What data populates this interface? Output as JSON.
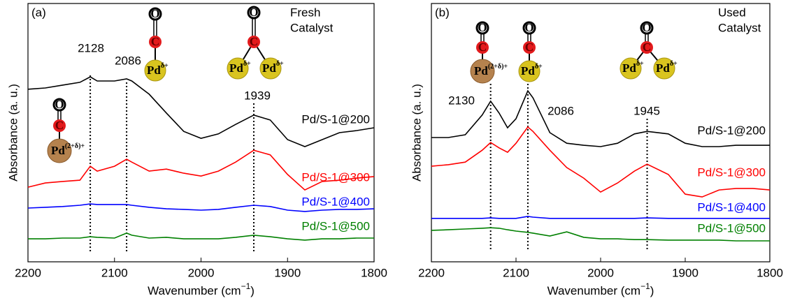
{
  "chart_data": [
    {
      "type": "line",
      "panel": "(a)",
      "note": [
        "Fresh",
        "Catalyst"
      ],
      "xlabel": "Wavenumber (cm",
      "xlabel_sup": "−1",
      "xlabel_end": ")",
      "ylabel": "Absorbance (a. u.)",
      "xlim": [
        2200,
        1800
      ],
      "xticks": [
        2200,
        2100,
        2000,
        1900,
        1800
      ],
      "ylim": [
        0,
        100
      ],
      "peaks": [
        2128,
        2086,
        1939
      ],
      "x": [
        2200,
        2180,
        2160,
        2140,
        2128,
        2120,
        2100,
        2086,
        2080,
        2060,
        2040,
        2020,
        2000,
        1980,
        1960,
        1939,
        1920,
        1900,
        1880,
        1860,
        1840,
        1820,
        1800
      ],
      "series": [
        {
          "name": "Pd/S-1@200",
          "color": "#000000",
          "values": [
            66.8,
            67.3,
            68.4,
            69.5,
            71.6,
            70.0,
            70.0,
            70.8,
            70.0,
            64.9,
            57.6,
            50.5,
            47.8,
            49.5,
            53.2,
            56.8,
            54.9,
            47.3,
            44.6,
            47.3,
            50.0,
            50.8,
            51.9
          ]
        },
        {
          "name": "Pd/S-1@300",
          "color": "#ff0000",
          "values": [
            28.9,
            30.5,
            31.1,
            31.6,
            37.0,
            35.1,
            37.0,
            39.7,
            38.6,
            35.1,
            35.9,
            34.3,
            33.2,
            35.1,
            38.6,
            43.2,
            41.4,
            33.8,
            27.8,
            31.1,
            31.6,
            32.4,
            33.0
          ]
        },
        {
          "name": "Pd/S-1@400",
          "color": "#0000ff",
          "values": [
            20.8,
            21.1,
            21.4,
            21.9,
            22.4,
            22.2,
            22.2,
            22.2,
            21.9,
            21.1,
            20.5,
            20.3,
            20.0,
            20.3,
            21.1,
            21.9,
            21.4,
            20.0,
            19.5,
            20.0,
            20.3,
            20.3,
            20.5
          ]
        },
        {
          "name": "Pd/S-1@500",
          "color": "#008000",
          "values": [
            8.9,
            8.9,
            9.2,
            9.2,
            9.7,
            9.5,
            9.2,
            11.1,
            10.3,
            9.2,
            9.5,
            8.9,
            8.9,
            8.9,
            9.5,
            10.3,
            9.7,
            8.9,
            8.4,
            8.9,
            8.9,
            9.2,
            9.2
          ]
        }
      ],
      "icons": [
        {
          "oxygen": "O",
          "carbon": "C",
          "metals": [
            {
              "symbol": "Pd",
              "charge": "(2+δ)+"
            }
          ]
        },
        {
          "oxygen": "O",
          "carbon": "C",
          "metals": [
            {
              "symbol": "Pd",
              "charge": "δ+"
            }
          ]
        },
        {
          "oxygen": "O",
          "carbon": "C",
          "metals": [
            {
              "symbol": "Pd",
              "charge": "δ+"
            },
            {
              "symbol": "Pd",
              "charge": "δ+"
            }
          ]
        }
      ]
    },
    {
      "type": "line",
      "panel": "(b)",
      "note": [
        "Used",
        "Catalyst"
      ],
      "xlabel": "Wavenumber (cm",
      "xlabel_sup": "−1",
      "xlabel_end": ")",
      "ylabel": "Absorbance (a. u.)",
      "xlim": [
        2200,
        1800
      ],
      "xticks": [
        2200,
        2100,
        2000,
        1900,
        1800
      ],
      "ylim": [
        0,
        100
      ],
      "peaks": [
        2130,
        2086,
        1945
      ],
      "x": [
        2200,
        2180,
        2160,
        2140,
        2130,
        2120,
        2110,
        2100,
        2086,
        2080,
        2060,
        2040,
        2020,
        2000,
        1980,
        1960,
        1945,
        1920,
        1900,
        1880,
        1860,
        1840,
        1820,
        1800
      ],
      "series": [
        {
          "name": "Pd/S-1@200",
          "color": "#000000",
          "values": [
            48.1,
            48.1,
            49.2,
            56.8,
            62.2,
            57.6,
            51.9,
            55.4,
            66.2,
            63.5,
            50.0,
            45.9,
            45.1,
            44.6,
            45.9,
            49.5,
            50.5,
            49.5,
            45.9,
            44.6,
            44.6,
            45.1,
            45.1,
            45.1
          ]
        },
        {
          "name": "Pd/S-1@300",
          "color": "#ff0000",
          "values": [
            37.0,
            37.6,
            38.6,
            43.2,
            46.2,
            44.1,
            42.4,
            45.9,
            52.2,
            50.5,
            43.2,
            36.5,
            32.4,
            27.0,
            30.5,
            35.1,
            37.8,
            33.8,
            26.2,
            25.1,
            27.8,
            28.4,
            28.4,
            27.8
          ]
        },
        {
          "name": "Pd/S-1@400",
          "color": "#0000ff",
          "values": [
            16.8,
            16.8,
            16.8,
            16.8,
            17.0,
            16.8,
            16.8,
            16.8,
            17.6,
            17.3,
            16.8,
            16.8,
            16.8,
            16.8,
            16.8,
            16.8,
            17.0,
            16.8,
            16.8,
            16.8,
            16.8,
            16.8,
            16.8,
            16.8
          ]
        },
        {
          "name": "Pd/S-1@500",
          "color": "#008000",
          "values": [
            12.2,
            12.4,
            12.7,
            13.0,
            13.2,
            13.0,
            12.4,
            11.9,
            11.4,
            11.1,
            10.0,
            11.6,
            9.5,
            8.9,
            8.9,
            8.6,
            8.6,
            8.4,
            8.4,
            8.4,
            8.4,
            8.1,
            8.1,
            8.1
          ]
        }
      ],
      "icons": [
        {
          "oxygen": "O",
          "carbon": "C",
          "metals": [
            {
              "symbol": "Pd",
              "charge": "(2+δ)+"
            }
          ]
        },
        {
          "oxygen": "O",
          "carbon": "C",
          "metals": [
            {
              "symbol": "Pd",
              "charge": "δ+"
            }
          ]
        },
        {
          "oxygen": "O",
          "carbon": "C",
          "metals": [
            {
              "symbol": "Pd",
              "charge": "δ+"
            },
            {
              "symbol": "Pd",
              "charge": "δ+"
            }
          ]
        }
      ]
    }
  ]
}
